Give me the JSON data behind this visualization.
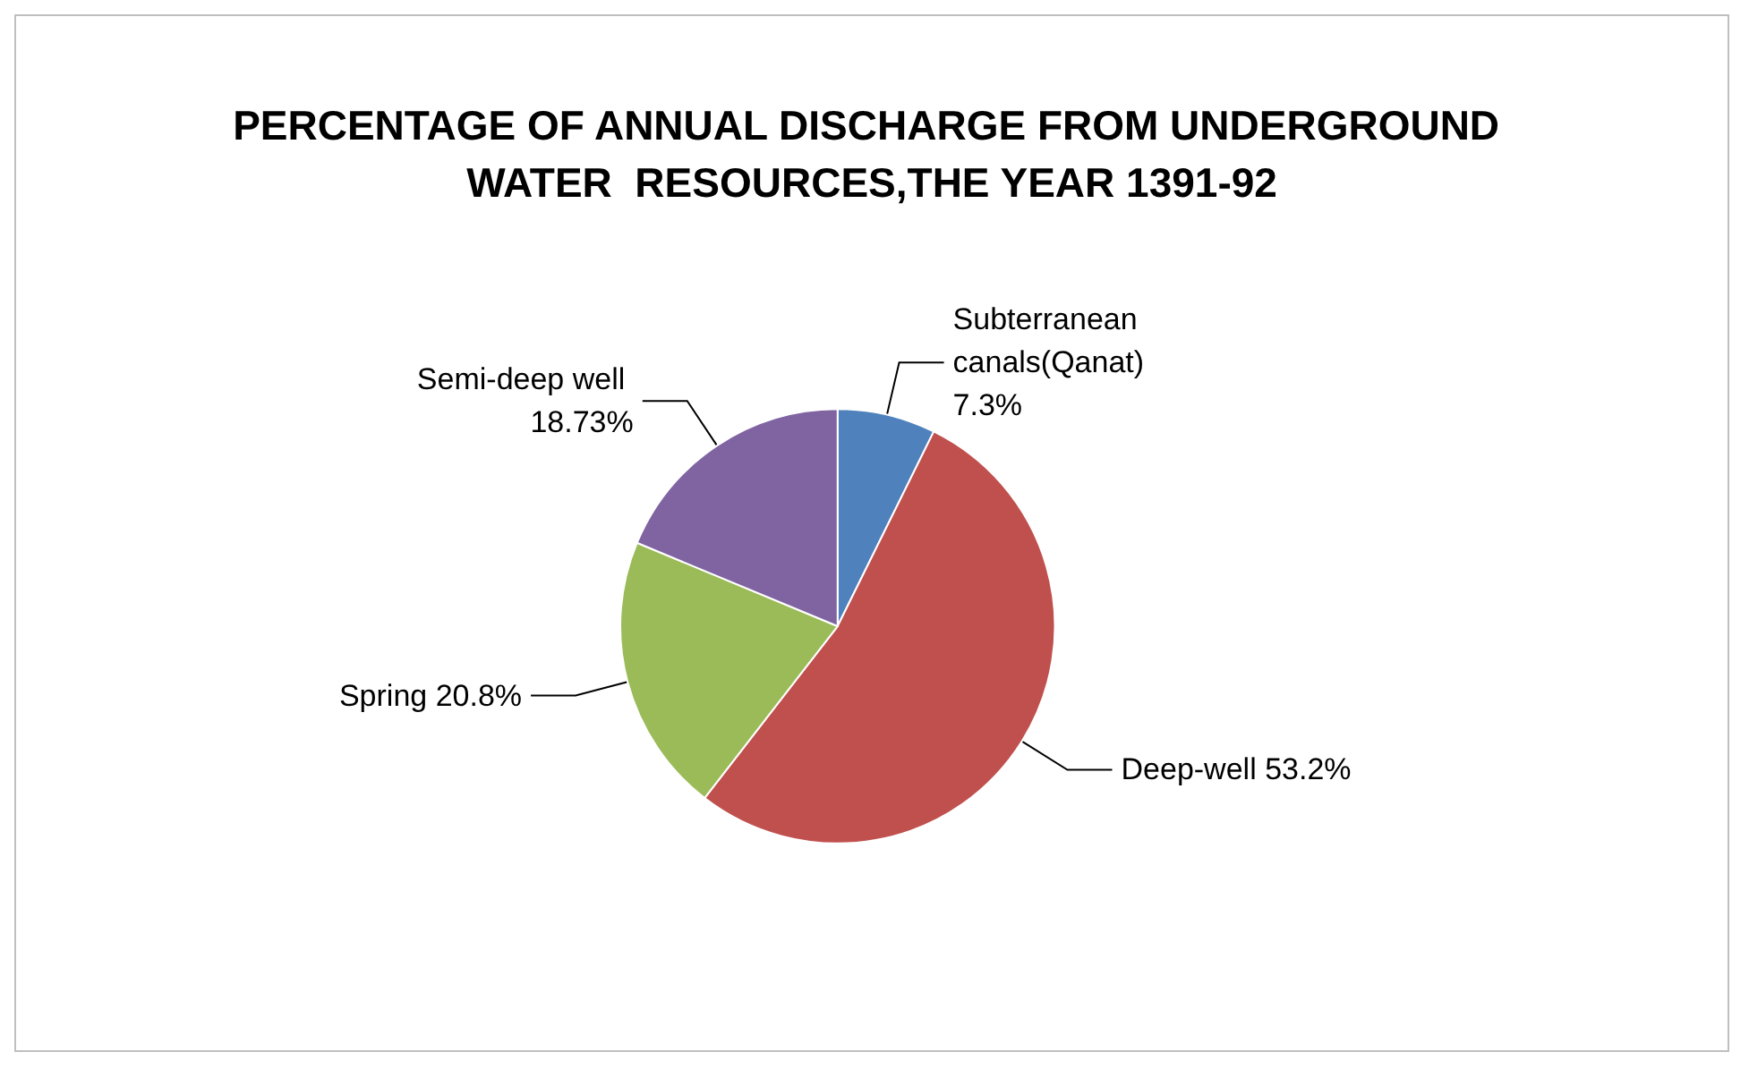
{
  "chart_data": {
    "type": "pie",
    "title": "PERCENTAGE OF ANNUAL DISCHARGE FROM UNDERGROUND WATER  RESOURCES,THE YEAR 1391-92",
    "categories": [
      "Subterranean canals(Qanat)",
      "Deep-well",
      "Spring",
      "Semi-deep well"
    ],
    "values": [
      7.3,
      53.2,
      20.8,
      18.73
    ],
    "colors": [
      "#4f81bd",
      "#c0504d",
      "#9bbb59",
      "#8064a2"
    ],
    "value_labels": [
      "7.3%",
      "53.2%",
      "20.8%",
      "18.73%"
    ],
    "legend": false
  }
}
